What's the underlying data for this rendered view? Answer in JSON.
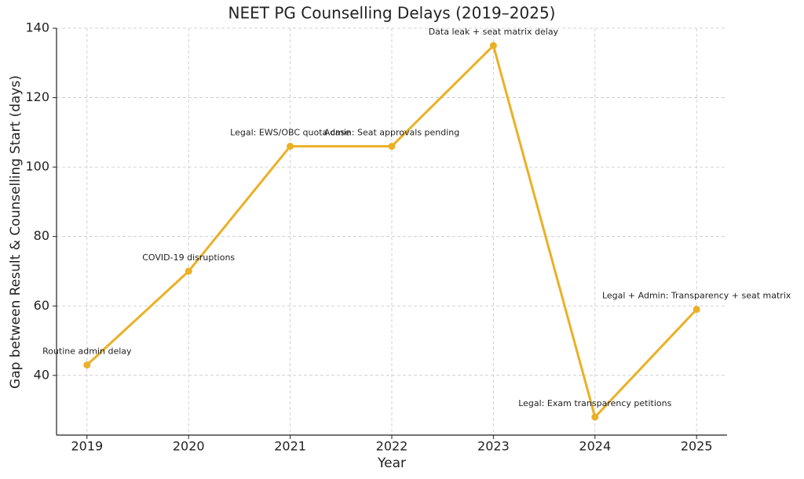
{
  "chart_data": {
    "type": "line",
    "title": "NEET PG Counselling Delays (2019–2025)",
    "x_label": "Year",
    "y_label": "Gap between Result & Counselling Start (days)",
    "x": [
      2019,
      2020,
      2021,
      2022,
      2023,
      2024,
      2025
    ],
    "values": [
      43,
      70,
      106,
      106,
      135,
      28,
      59
    ],
    "annotations": [
      "Routine admin delay",
      "COVID-19 disruptions",
      "Legal: EWS/OBC quota case",
      "Admin: Seat approvals pending",
      "Data leak + seat matrix delay",
      "Legal: Exam transparency petitions",
      "Legal + Admin: Transparency + seat matrix"
    ],
    "color": "#ebb026",
    "xlim": [
      2018.7,
      2025.3
    ],
    "xticks": [
      2019,
      2020,
      2021,
      2022,
      2023,
      2024,
      2025
    ],
    "ylim": [
      22.8,
      140
    ],
    "yticks": [
      40,
      60,
      80,
      100,
      120,
      140
    ],
    "grid": true
  }
}
